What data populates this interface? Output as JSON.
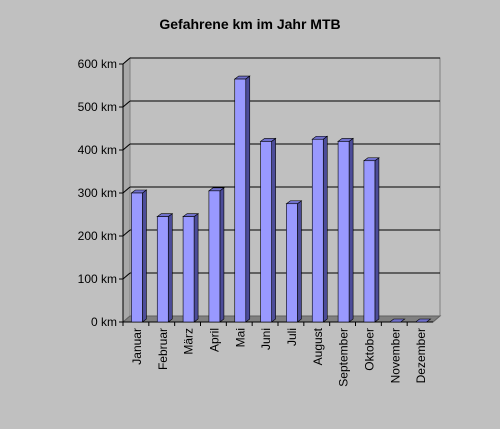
{
  "chart_data": {
    "type": "bar",
    "title": "Gefahrene km im Jahr MTB",
    "xlabel": "",
    "ylabel": "",
    "categories": [
      "Januar",
      "Februar",
      "März",
      "April",
      "Mai",
      "Juni",
      "Juli",
      "August",
      "September",
      "Oktober",
      "November",
      "Dezember"
    ],
    "values": [
      300,
      245,
      245,
      305,
      565,
      420,
      275,
      425,
      420,
      375,
      0,
      0
    ],
    "ylim": [
      0,
      600
    ],
    "yticks": [
      0,
      100,
      200,
      300,
      400,
      500,
      600
    ],
    "ytick_labels": [
      "0 km",
      "100 km",
      "200 km",
      "300 km",
      "400 km",
      "500 km",
      "600 km"
    ],
    "bar_style": "3d",
    "grid": true,
    "legend": "none",
    "colors": {
      "bar_front": "#9999ff",
      "bar_side": "#4c4c99",
      "bar_top": "#7070cc",
      "floor": "#808080",
      "background": "#c0c0c0",
      "grid": "#000000"
    }
  }
}
